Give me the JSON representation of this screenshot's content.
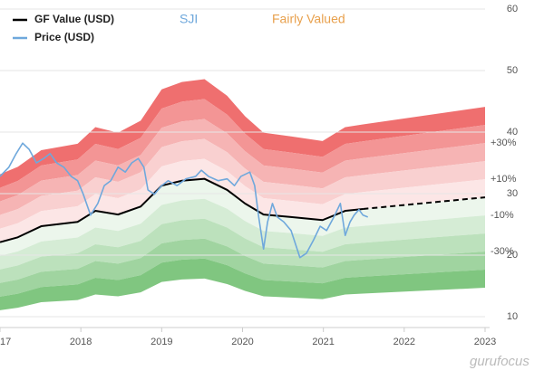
{
  "chart_data": {
    "type": "line",
    "title": "SJI",
    "subtitle": "Fairly Valued",
    "watermark": "gurufocus",
    "xlim": [
      2017,
      2023
    ],
    "xticks": [
      {
        "value": 2017,
        "label": "17"
      },
      2018,
      2019,
      2020,
      2021,
      2022,
      2023
    ],
    "ylim": [
      10,
      60
    ],
    "yticks": [
      10,
      20,
      30,
      40,
      50,
      60
    ],
    "grid": true,
    "legend": "top-left",
    "forecast_from": 2021.49,
    "bands": [
      {
        "from": 40,
        "to": 50,
        "color": "#ef6f6f"
      },
      {
        "from": 30,
        "to": 40,
        "color": "#f39595"
      },
      {
        "from": 20,
        "to": 30,
        "color": "#f6b4b4"
      },
      {
        "from": 10,
        "to": 20,
        "color": "#f9d0d0"
      },
      {
        "from": 0,
        "to": 10,
        "color": "#fce6e6"
      },
      {
        "from": -10,
        "to": 0,
        "color": "#ecf6ec"
      },
      {
        "from": -20,
        "to": -10,
        "color": "#d5ecd5"
      },
      {
        "from": -30,
        "to": -20,
        "color": "#bce1bc"
      },
      {
        "from": -40,
        "to": -30,
        "color": "#a0d4a0"
      },
      {
        "from": -50,
        "to": -40,
        "color": "#80c680"
      }
    ],
    "band_labels": [
      {
        "value": 30,
        "label": "+30%"
      },
      {
        "value": 10,
        "label": "+10%"
      },
      {
        "value": -10,
        "label": "-10%"
      },
      {
        "value": -30,
        "label": "-30%"
      }
    ],
    "series": [
      {
        "name": "GF Value (USD)",
        "color": "#000000",
        "x": [
          2017.0,
          2017.22,
          2017.51,
          2017.96,
          2018.18,
          2018.46,
          2018.74,
          2019.0,
          2019.25,
          2019.53,
          2019.81,
          2020.03,
          2020.26,
          2020.6,
          2020.99,
          2021.27,
          2021.49,
          2023.0
        ],
        "values": [
          22.1,
          22.9,
          24.7,
          25.4,
          27.2,
          26.6,
          27.9,
          31.3,
          32.1,
          32.4,
          30.6,
          28.4,
          26.6,
          26.2,
          25.7,
          27.2,
          27.5,
          29.4
        ]
      },
      {
        "name": "Price (USD)",
        "color": "#6fa8dc",
        "x": [
          2017.0,
          2017.11,
          2017.2,
          2017.28,
          2017.36,
          2017.45,
          2017.54,
          2017.62,
          2017.7,
          2017.79,
          2017.88,
          2017.96,
          2018.03,
          2018.12,
          2018.21,
          2018.29,
          2018.37,
          2018.46,
          2018.55,
          2018.63,
          2018.71,
          2018.78,
          2018.83,
          2018.91,
          2019.0,
          2019.08,
          2019.19,
          2019.3,
          2019.42,
          2019.49,
          2019.58,
          2019.7,
          2019.81,
          2019.9,
          2019.98,
          2020.09,
          2020.15,
          2020.2,
          2020.26,
          2020.31,
          2020.37,
          2020.43,
          2020.51,
          2020.6,
          2020.71,
          2020.79,
          2020.88,
          2020.96,
          2021.04,
          2021.13,
          2021.21,
          2021.27,
          2021.33,
          2021.38,
          2021.44,
          2021.49,
          2021.55
        ],
        "values": [
          32.8,
          34.3,
          36.5,
          38.2,
          37.2,
          35.0,
          35.7,
          36.5,
          35.0,
          34.3,
          32.8,
          32.1,
          29.9,
          26.5,
          28.4,
          31.3,
          32.1,
          34.3,
          33.5,
          35.0,
          35.7,
          34.3,
          30.6,
          29.9,
          31.3,
          32.1,
          31.3,
          32.4,
          32.8,
          33.8,
          32.8,
          32.1,
          32.4,
          31.3,
          32.8,
          33.5,
          31.3,
          26.2,
          21.0,
          25.4,
          28.4,
          26.2,
          25.4,
          24.0,
          19.6,
          20.3,
          22.5,
          24.7,
          24.0,
          26.2,
          28.4,
          23.2,
          25.4,
          26.5,
          27.4,
          26.5,
          26.2
        ]
      }
    ]
  }
}
